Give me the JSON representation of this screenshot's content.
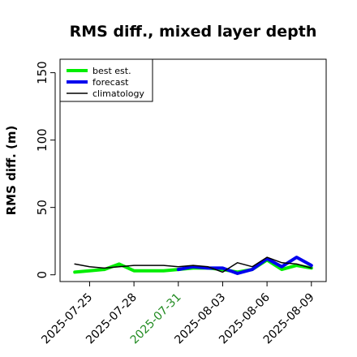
{
  "chart_data": {
    "type": "line",
    "title": "RMS diff., mixed layer depth",
    "xlabel": "",
    "ylabel": "RMS diff. (m)",
    "ylim": [
      -5,
      160
    ],
    "yticks": [
      0,
      50,
      100,
      150
    ],
    "xticks": [
      "2025-07-25",
      "2025-07-28",
      "2025-07-31",
      "2025-08-03",
      "2025-08-06",
      "2025-08-09"
    ],
    "highlighted_tick": "2025-07-31",
    "highlight_color": "#228b22",
    "xdomain": [
      "2025-07-23",
      "2025-08-10"
    ],
    "grid": false,
    "legend_position": "top-left",
    "series": [
      {
        "name": "best est.",
        "color": "#00ee00",
        "linewidth": 4,
        "x": [
          "2025-07-24",
          "2025-07-25",
          "2025-07-26",
          "2025-07-27",
          "2025-07-28",
          "2025-07-29",
          "2025-07-30",
          "2025-07-31",
          "2025-08-01",
          "2025-08-02",
          "2025-08-03",
          "2025-08-04",
          "2025-08-05",
          "2025-08-06",
          "2025-08-07",
          "2025-08-08",
          "2025-08-09"
        ],
        "values": [
          2,
          3,
          4,
          8,
          3,
          3,
          3,
          4,
          5,
          5,
          4,
          2,
          4,
          11,
          4,
          7,
          5
        ]
      },
      {
        "name": "forecast",
        "color": "#0000ee",
        "linewidth": 4,
        "x": [
          "2025-07-31",
          "2025-08-01",
          "2025-08-02",
          "2025-08-03",
          "2025-08-04",
          "2025-08-05",
          "2025-08-06",
          "2025-08-07",
          "2025-08-08",
          "2025-08-09"
        ],
        "values": [
          4,
          6,
          5,
          5,
          1,
          4,
          12,
          6,
          13,
          7
        ]
      },
      {
        "name": "climatology",
        "color": "#000000",
        "linewidth": 1.5,
        "x": [
          "2025-07-24",
          "2025-07-25",
          "2025-07-26",
          "2025-07-27",
          "2025-07-28",
          "2025-07-29",
          "2025-07-30",
          "2025-07-31",
          "2025-08-01",
          "2025-08-02",
          "2025-08-03",
          "2025-08-04",
          "2025-08-05",
          "2025-08-06",
          "2025-08-07",
          "2025-08-08",
          "2025-08-09"
        ],
        "values": [
          8,
          6,
          5,
          6,
          7,
          7,
          7,
          6,
          7,
          6,
          2,
          9,
          6,
          13,
          9,
          8,
          5
        ]
      }
    ]
  }
}
